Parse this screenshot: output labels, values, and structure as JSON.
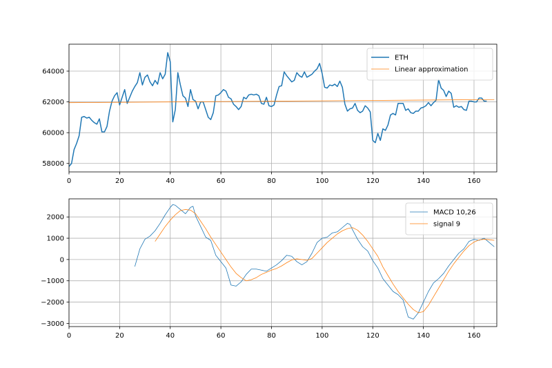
{
  "chart_data": [
    {
      "type": "line",
      "title": "",
      "xlabel": "",
      "ylabel": "",
      "xlim": [
        0,
        169
      ],
      "ylim": [
        57450,
        65750
      ],
      "xticks": [
        0,
        20,
        40,
        60,
        80,
        100,
        120,
        140,
        160
      ],
      "yticks": [
        58000,
        60000,
        62000,
        64000
      ],
      "grid": true,
      "legend_position": "top-right",
      "series": [
        {
          "name": "ETH",
          "color": "#1f77b4",
          "x_start": 0,
          "values": [
            57800,
            58000,
            58900,
            59300,
            59800,
            61000,
            61050,
            60950,
            61000,
            60800,
            60650,
            60550,
            60900,
            60050,
            60050,
            60400,
            61400,
            62050,
            62400,
            62600,
            61800,
            62300,
            62800,
            61900,
            62300,
            62700,
            63000,
            63250,
            63900,
            63100,
            63600,
            63750,
            63300,
            63050,
            63400,
            63150,
            63900,
            63500,
            63800,
            65200,
            64600,
            60700,
            61500,
            63900,
            63100,
            62400,
            62250,
            61700,
            62800,
            62150,
            62050,
            61550,
            62000,
            62000,
            61500,
            61000,
            60850,
            61300,
            62400,
            62450,
            62600,
            62800,
            62700,
            62300,
            62200,
            61850,
            61700,
            61500,
            61700,
            62300,
            62200,
            62450,
            62500,
            62450,
            62500,
            62400,
            61900,
            61850,
            62300,
            61750,
            61700,
            61800,
            62450,
            63000,
            63050,
            63950,
            63700,
            63500,
            63300,
            63400,
            63900,
            63700,
            63600,
            63950,
            63600,
            63700,
            63800,
            64000,
            64150,
            64500,
            63850,
            62950,
            62900,
            63100,
            63050,
            63150,
            63000,
            63350,
            62950,
            61850,
            61400,
            61550,
            61600,
            61900,
            61450,
            61300,
            61400,
            61750,
            61600,
            61350,
            59500,
            59350,
            59950,
            59500,
            60250,
            60150,
            60500,
            61150,
            61250,
            61150,
            61900,
            61900,
            61900,
            61450,
            61550,
            61300,
            61250,
            61400,
            61400,
            61600,
            61650,
            61750,
            61950,
            61750,
            61950,
            62100,
            63450,
            62900,
            62750,
            62350,
            62700,
            62550,
            61650,
            61750,
            61650,
            61700,
            61500,
            61450,
            62050,
            62050,
            62000,
            62000,
            62250,
            62250,
            62050,
            62050
          ]
        },
        {
          "name": "Linear approximation",
          "color": "#ff7f0e",
          "x": [
            0,
            168
          ],
          "values": [
            61950,
            62150
          ]
        }
      ]
    },
    {
      "type": "line",
      "title": "",
      "xlabel": "",
      "ylabel": "",
      "xlim": [
        0,
        169
      ],
      "ylim": [
        -3150,
        2850
      ],
      "xticks": [
        0,
        20,
        40,
        60,
        80,
        100,
        120,
        140,
        160
      ],
      "yticks": [
        -3000,
        -2000,
        -1000,
        0,
        1000,
        2000
      ],
      "grid": true,
      "legend_position": "top-right",
      "series": [
        {
          "name": "MACD 10,26",
          "color": "#1f77b4",
          "x": [
            26,
            28,
            30,
            32,
            34,
            36,
            38,
            40,
            41,
            42,
            44,
            46,
            48,
            49,
            50,
            52,
            54,
            56,
            58,
            60,
            62,
            64,
            66,
            68,
            70,
            72,
            74,
            76,
            78,
            80,
            82,
            84,
            86,
            88,
            90,
            92,
            94,
            96,
            98,
            100,
            102,
            104,
            106,
            108,
            110,
            111,
            112,
            114,
            116,
            118,
            120,
            122,
            124,
            126,
            128,
            130,
            132,
            134,
            136,
            138,
            140,
            142,
            144,
            146,
            148,
            150,
            152,
            154,
            156,
            158,
            160,
            162,
            164,
            166,
            168
          ],
          "values": [
            -330,
            500,
            950,
            1100,
            1350,
            1700,
            2100,
            2450,
            2580,
            2550,
            2350,
            2150,
            2450,
            2500,
            2050,
            1550,
            1050,
            900,
            200,
            -100,
            -400,
            -1200,
            -1250,
            -1050,
            -700,
            -450,
            -450,
            -500,
            -550,
            -400,
            -250,
            -50,
            200,
            150,
            -100,
            -250,
            -100,
            300,
            800,
            1000,
            1050,
            1250,
            1300,
            1500,
            1700,
            1650,
            1400,
            950,
            600,
            400,
            -50,
            -400,
            -900,
            -1200,
            -1500,
            -1650,
            -1900,
            -2700,
            -2800,
            -2500,
            -2000,
            -1500,
            -1100,
            -900,
            -650,
            -300,
            0,
            300,
            500,
            850,
            950,
            900,
            1000,
            800,
            600
          ]
        },
        {
          "name": "signal 9",
          "color": "#ff7f0e",
          "x": [
            34,
            36,
            38,
            40,
            42,
            44,
            46,
            48,
            50,
            52,
            54,
            56,
            58,
            60,
            62,
            64,
            66,
            68,
            70,
            72,
            74,
            76,
            78,
            80,
            82,
            84,
            86,
            88,
            90,
            92,
            94,
            96,
            98,
            100,
            102,
            104,
            106,
            108,
            110,
            112,
            114,
            116,
            118,
            120,
            122,
            124,
            126,
            128,
            130,
            132,
            134,
            136,
            138,
            140,
            142,
            144,
            146,
            148,
            150,
            152,
            154,
            156,
            158,
            160,
            162,
            164,
            166,
            168
          ],
          "values": [
            850,
            1200,
            1550,
            1850,
            2100,
            2300,
            2350,
            2320,
            2150,
            1800,
            1450,
            1050,
            700,
            350,
            0,
            -350,
            -650,
            -850,
            -1000,
            -950,
            -850,
            -700,
            -600,
            -500,
            -420,
            -300,
            -150,
            -20,
            30,
            0,
            -40,
            50,
            300,
            550,
            800,
            1000,
            1200,
            1350,
            1450,
            1500,
            1380,
            1150,
            850,
            500,
            150,
            -350,
            -750,
            -1150,
            -1500,
            -1800,
            -2100,
            -2350,
            -2500,
            -2450,
            -2150,
            -1750,
            -1350,
            -950,
            -550,
            -200,
            100,
            400,
            650,
            820,
            920,
            950,
            930,
            900
          ]
        }
      ]
    }
  ]
}
